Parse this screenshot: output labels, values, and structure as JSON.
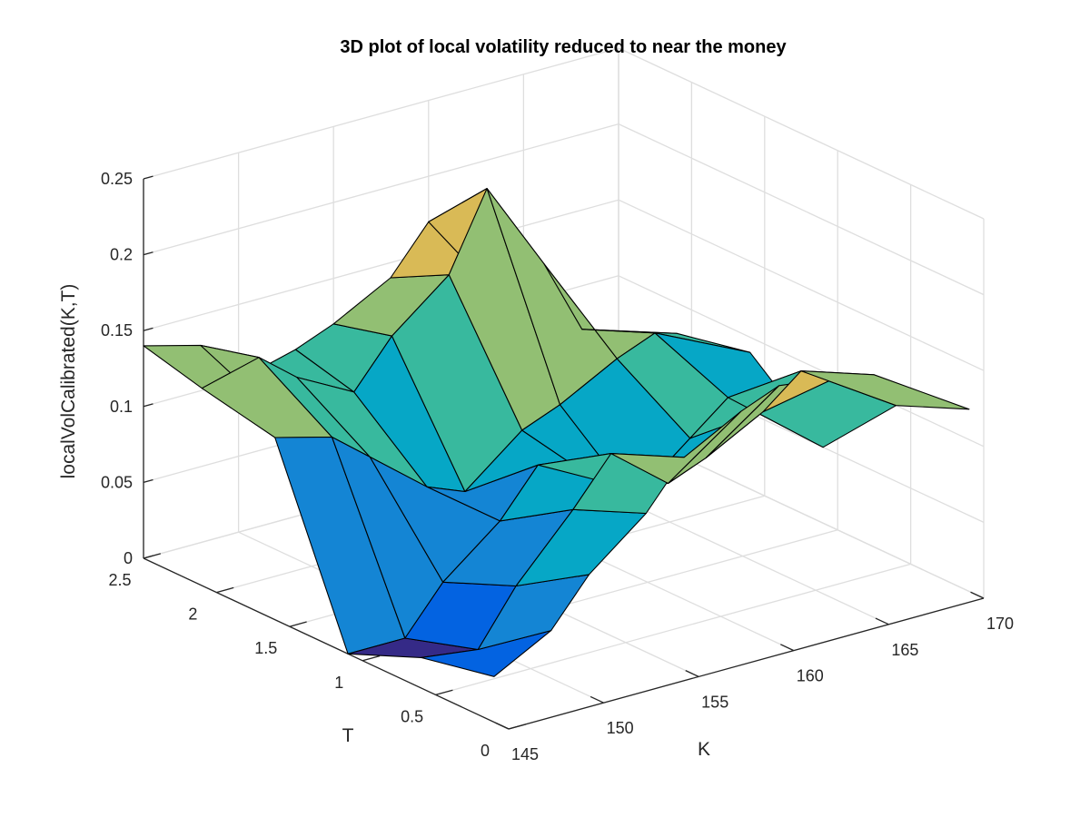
{
  "chart_data": {
    "type": "surface3d",
    "title": "3D plot of local volatility reduced to near the money",
    "xlabel": "K",
    "ylabel": "T",
    "zlabel": "localVolCalibrated(K,T)",
    "xlim": [
      145,
      170
    ],
    "ylim": [
      0,
      2.5
    ],
    "zlim": [
      0,
      0.25
    ],
    "xticks": [
      145,
      150,
      155,
      160,
      165,
      170
    ],
    "yticks": [
      0,
      0.5,
      1,
      1.5,
      2,
      2.5
    ],
    "zticks": [
      0,
      0.05,
      0.1,
      0.15,
      0.2,
      0.25
    ],
    "xtick_labels": [
      "145",
      "150",
      "155",
      "160",
      "165",
      "170"
    ],
    "ytick_labels": [
      "0",
      "0.5",
      "1",
      "1.5",
      "2",
      "2.5"
    ],
    "ztick_labels": [
      "0",
      "0.05",
      "0.1",
      "0.15",
      "0.2",
      "0.25"
    ],
    "grid": true,
    "colormap": [
      "#352a87",
      "#0363e1",
      "#1485d4",
      "#06a7c6",
      "#38b99e",
      "#92bf73",
      "#d9ba56",
      "#fcce2e",
      "#f9fb0e"
    ],
    "K": [
      145,
      148,
      150,
      153,
      155,
      158,
      160,
      163,
      165,
      170
    ],
    "T": [
      0.1,
      0.6,
      1.1,
      1.6,
      2.1,
      2.5
    ],
    "Z": [
      [
        0.03,
        0.05,
        0.08,
        0.11,
        0.14,
        0.16,
        0.17,
        0.165,
        0.16,
        0.12
      ],
      [
        0.02,
        0.015,
        0.05,
        0.09,
        0.12,
        0.09,
        0.1,
        0.12,
        0.14,
        0.1
      ],
      [
        0.0,
        0.0,
        0.03,
        0.06,
        0.09,
        0.07,
        0.05,
        0.08,
        0.1,
        0.05
      ],
      [
        0.12,
        0.11,
        0.09,
        0.06,
        0.05,
        0.08,
        0.09,
        0.11,
        0.12,
        0.09
      ],
      [
        0.13,
        0.14,
        0.12,
        0.1,
        0.13,
        0.16,
        0.21,
        0.15,
        0.1,
        0.08
      ],
      [
        0.14,
        0.13,
        0.1,
        0.11,
        0.12,
        0.14,
        0.17,
        0.12,
        0.09,
        0.06
      ]
    ]
  }
}
